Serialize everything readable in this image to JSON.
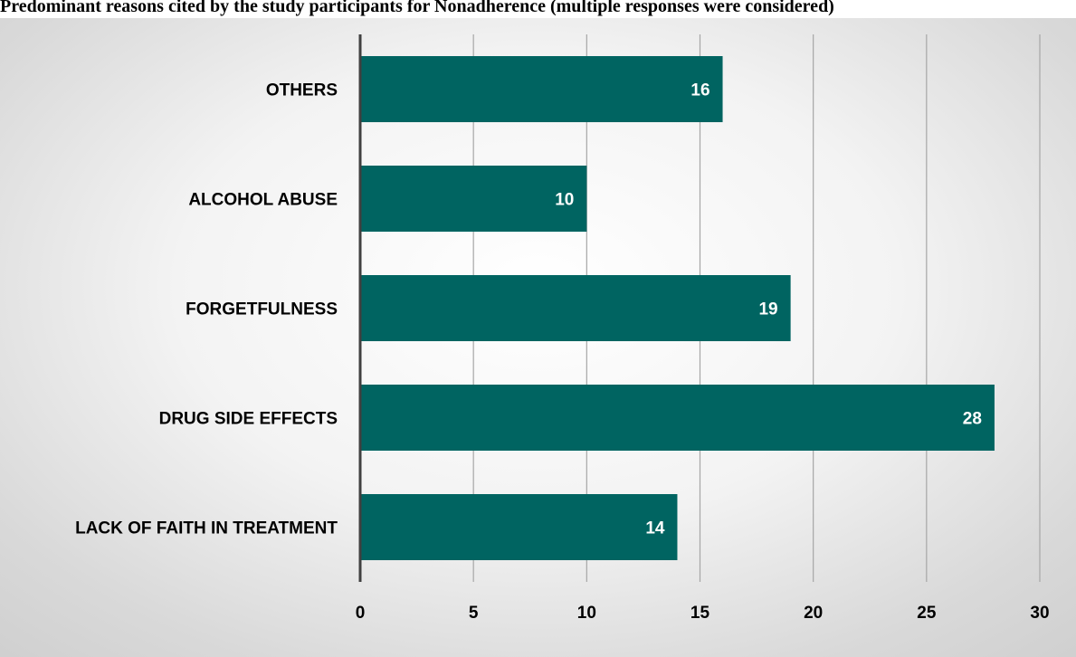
{
  "title": "Predominant reasons cited by the study participants for Nonadherence (multiple responses were considered)",
  "chart_data": {
    "type": "bar",
    "orientation": "horizontal",
    "title": "Predominant reasons cited by the study participants for Nonadherence (multiple responses were considered)",
    "categories": [
      "OTHERS",
      "ALCOHOL ABUSE",
      "FORGETFULNESS",
      "DRUG SIDE EFFECTS",
      "LACK OF FAITH IN TREATMENT"
    ],
    "values": [
      16,
      10,
      19,
      28,
      14
    ],
    "xlim": [
      0,
      30
    ],
    "xticks": [
      0,
      5,
      10,
      15,
      20,
      25,
      30
    ],
    "xlabel": "",
    "ylabel": "",
    "grid": "vertical",
    "legend": "none",
    "data_labels": "inside-end",
    "bar_color": "#006461",
    "gridline_color": "#a6a6a6",
    "axis_color": "#404040"
  }
}
